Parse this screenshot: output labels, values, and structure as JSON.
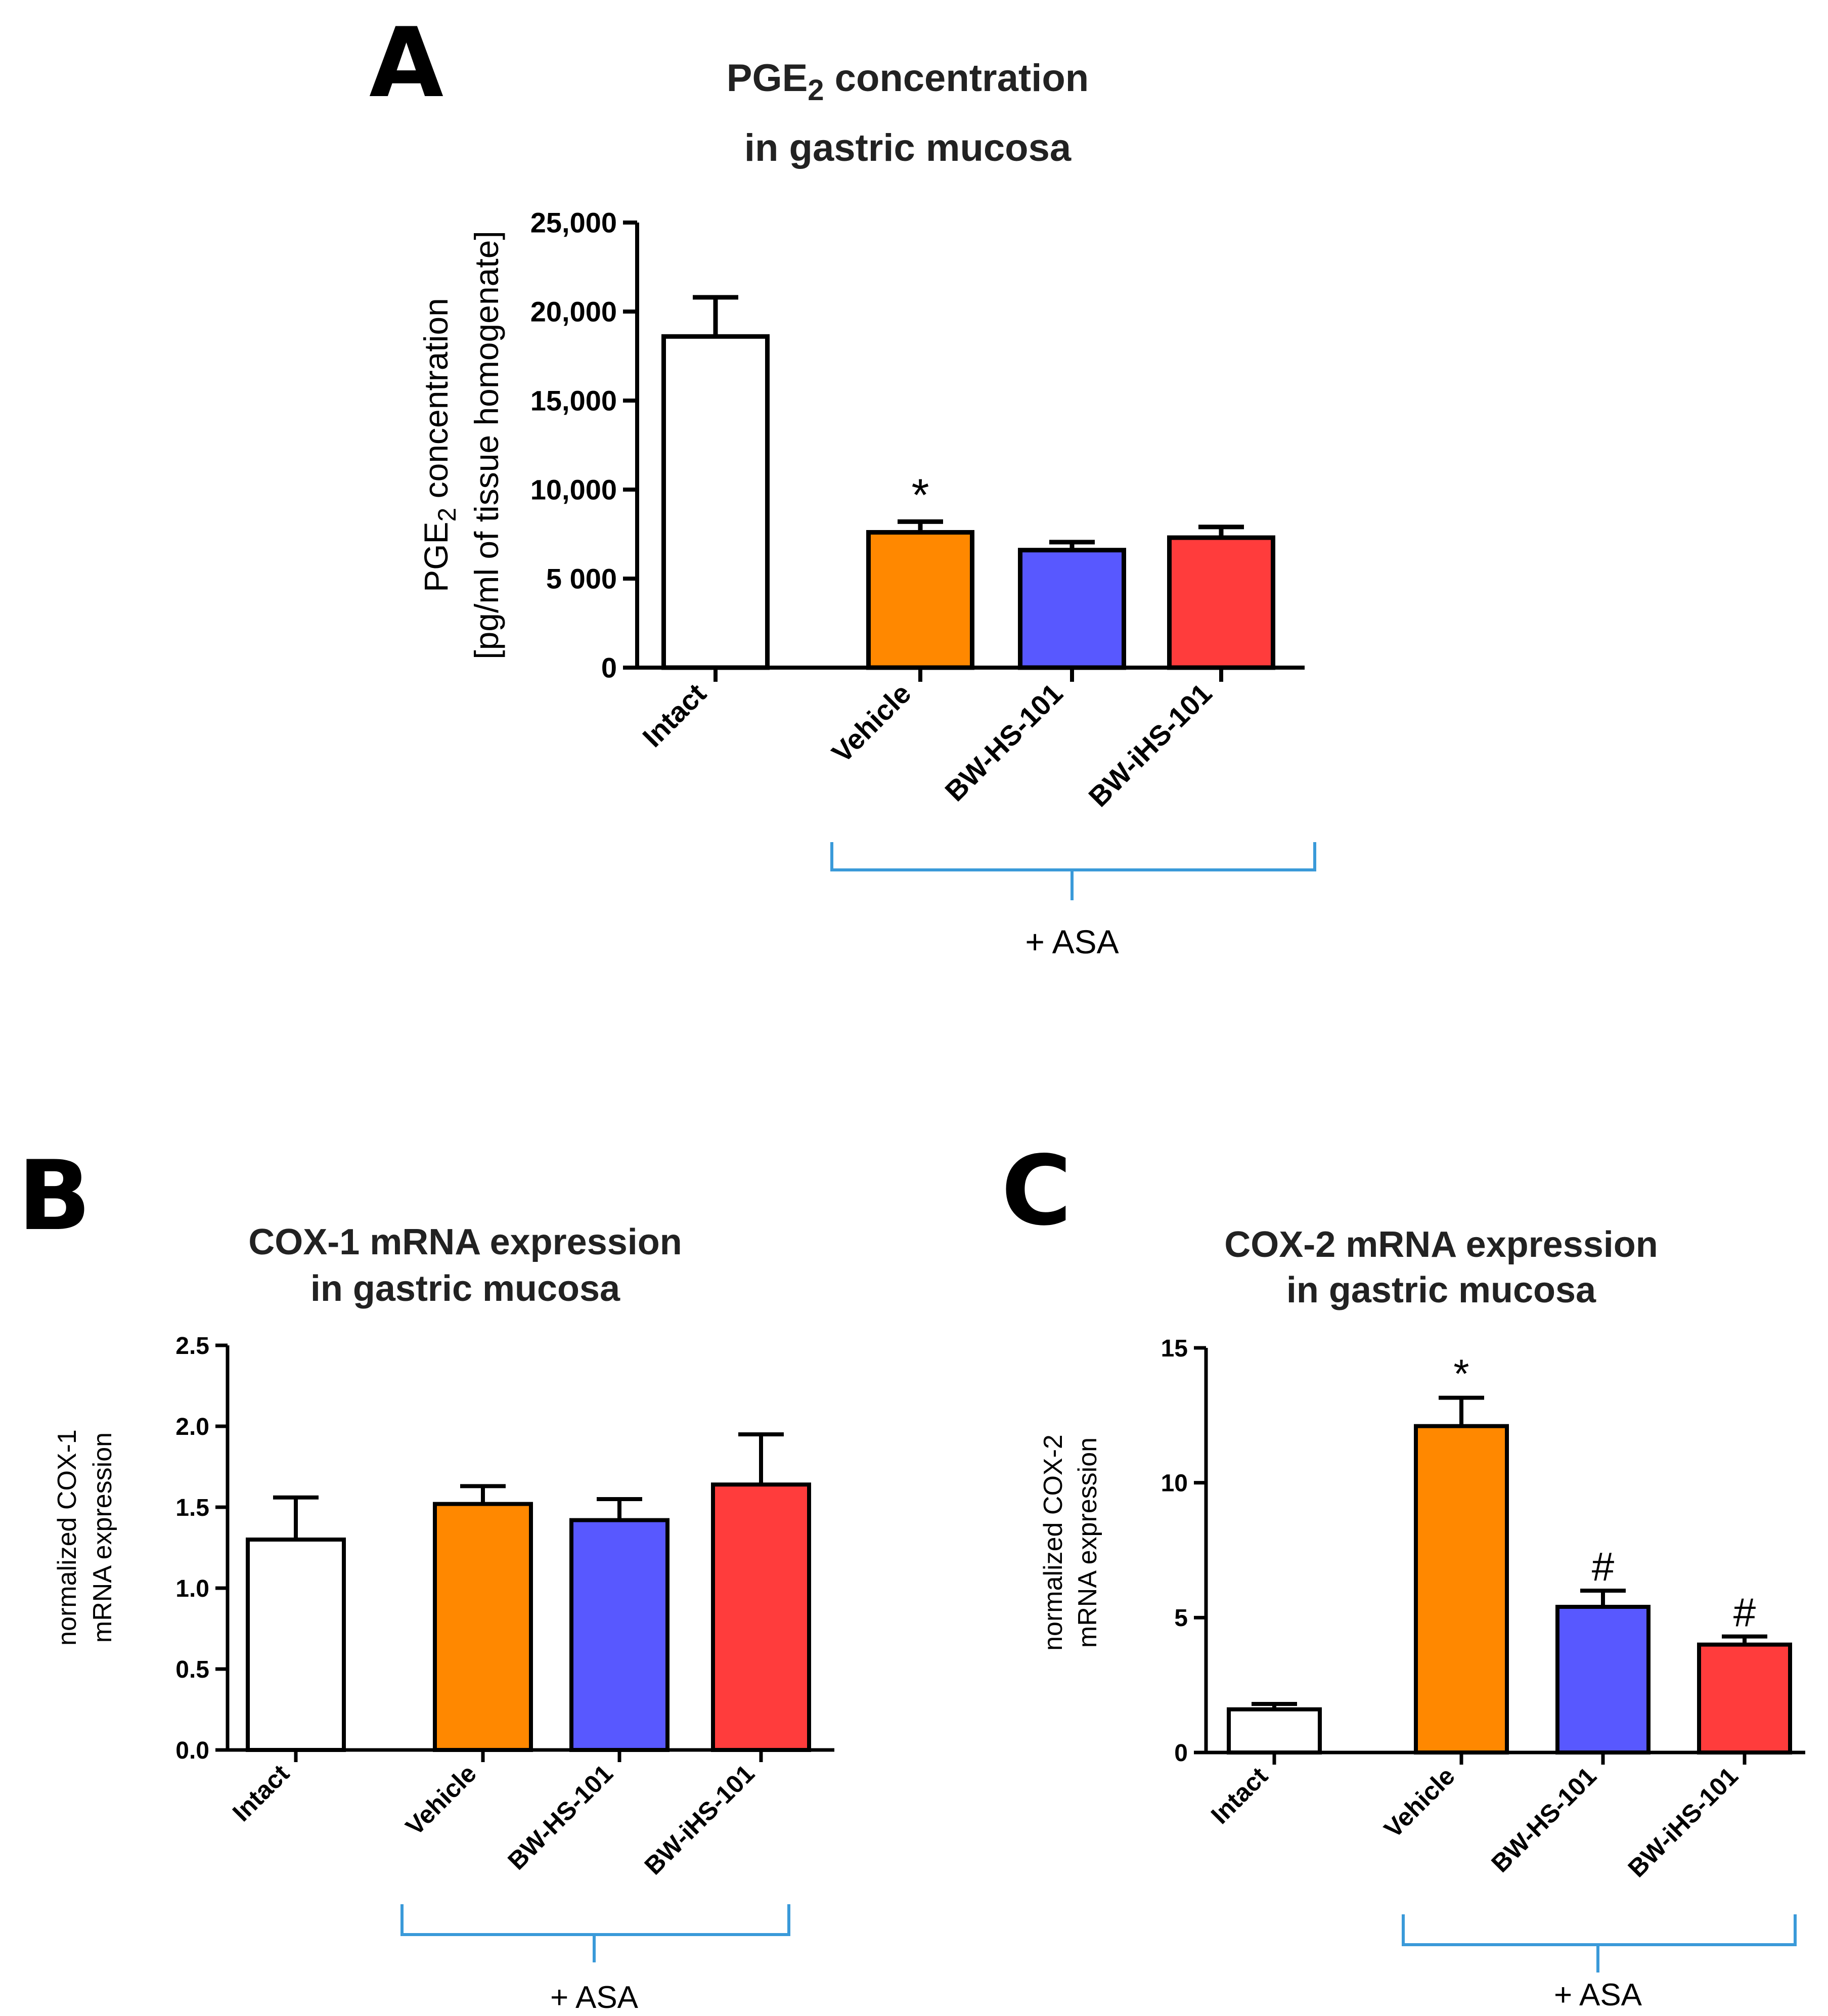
{
  "colors": {
    "intact": "#ffffff",
    "vehicle": "#ff8800",
    "bw_hs_101": "#5858ff",
    "bw_ihs_101": "#ff3c3c",
    "bracket": "#3a9ad9"
  },
  "chart_data": [
    {
      "id": "A",
      "panel_label": "A",
      "type": "bar",
      "title_line1_pre": "PGE",
      "title_line1_sub": "2",
      "title_line1_post": " concentration",
      "title_line2": "in gastric mucosa",
      "ylabel_line1_pre": "PGE",
      "ylabel_line1_sub": "2",
      "ylabel_line1_post": " concentration",
      "ylabel_line2": "[pg/ml of tissue homogenate]",
      "ylim": [
        0,
        25000
      ],
      "yticks": [
        0,
        5000,
        10000,
        15000,
        20000,
        25000
      ],
      "ytick_labels": [
        "0",
        "5 000",
        "10,000",
        "15,000",
        "20,000",
        "25,000"
      ],
      "categories": [
        "Intact",
        "Vehicle",
        "BW-HS-101",
        "BW-iHS-101"
      ],
      "values": [
        18600,
        7600,
        6600,
        7300
      ],
      "errors": [
        2200,
        600,
        450,
        600
      ],
      "annotations": [
        "",
        "*",
        "",
        ""
      ],
      "group_label": "+ ASA"
    },
    {
      "id": "B",
      "panel_label": "B",
      "type": "bar",
      "title_line1": "COX-1 mRNA expression",
      "title_line2": "in gastric mucosa",
      "ylabel_line1": "normalized COX-1",
      "ylabel_line2": "mRNA expression",
      "ylim": [
        0,
        2.5
      ],
      "yticks": [
        0,
        0.5,
        1.0,
        1.5,
        2.0,
        2.5
      ],
      "ytick_labels": [
        "0.0",
        "0.5",
        "1.0",
        "1.5",
        "2.0",
        "2.5"
      ],
      "categories": [
        "Intact",
        "Vehicle",
        "BW-HS-101",
        "BW-iHS-101"
      ],
      "values": [
        1.3,
        1.52,
        1.42,
        1.64
      ],
      "errors": [
        0.26,
        0.11,
        0.13,
        0.31
      ],
      "annotations": [
        "",
        "",
        "",
        ""
      ],
      "group_label": "+ ASA"
    },
    {
      "id": "C",
      "panel_label": "C",
      "type": "bar",
      "title_line1": "COX-2 mRNA expression",
      "title_line2": "in gastric mucosa",
      "ylabel_line1": "normalized COX-2",
      "ylabel_line2": "mRNA expression",
      "ylim": [
        0,
        15
      ],
      "yticks": [
        0,
        5,
        10,
        15
      ],
      "ytick_labels": [
        "0",
        "5",
        "10",
        "15"
      ],
      "categories": [
        "Intact",
        "Vehicle",
        "BW-HS-101",
        "BW-iHS-101"
      ],
      "values": [
        1.6,
        12.1,
        5.4,
        4.0
      ],
      "errors": [
        0.2,
        1.05,
        0.6,
        0.3
      ],
      "annotations": [
        "",
        "*",
        "#",
        "#"
      ],
      "group_label": "+ ASA"
    }
  ]
}
